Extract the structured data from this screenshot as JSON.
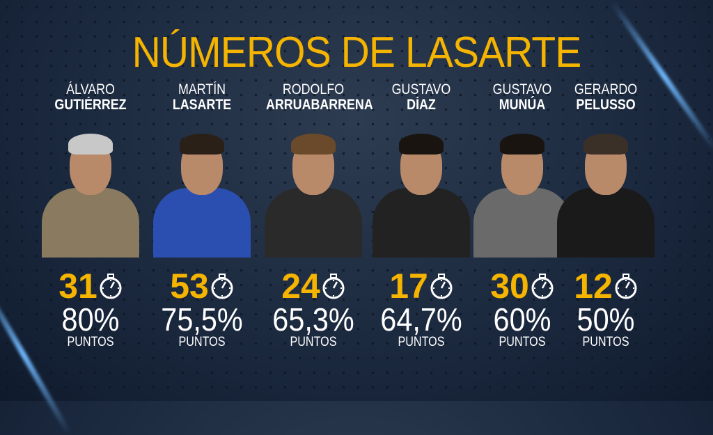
{
  "title": "NÚMEROS DE LASARTE",
  "coaches": [
    {
      "first": "ÁLVARO",
      "last": "GUTIÉRREZ",
      "games": "31",
      "percent": "80%",
      "unit": "PUNTOS",
      "hair": "#c8c8c8",
      "shirt": "#8a7a60"
    },
    {
      "first": "MARTÍN",
      "last": "LASARTE",
      "games": "53",
      "percent": "75,5%",
      "unit": "PUNTOS",
      "hair": "#2a2018",
      "shirt": "#2b4fb0"
    },
    {
      "first": "RODOLFO",
      "last": "ARRUABARRENA",
      "games": "24",
      "percent": "65,3%",
      "unit": "PUNTOS",
      "hair": "#6a4a2a",
      "shirt": "#2a2a2a"
    },
    {
      "first": "GUSTAVO",
      "last": "DÍAZ",
      "games": "17",
      "percent": "64,7%",
      "unit": "PUNTOS",
      "hair": "#1a1410",
      "shirt": "#222"
    },
    {
      "first": "GUSTAVO",
      "last": "MUNÚA",
      "games": "30",
      "percent": "60%",
      "unit": "PUNTOS",
      "hair": "#1a1410",
      "shirt": "#6a6a6a"
    },
    {
      "first": "GERARDO",
      "last": "PELUSSO",
      "games": "12",
      "percent": "50%",
      "unit": "PUNTOS",
      "hair": "#3a3028",
      "shirt": "#1a1a1a"
    }
  ],
  "colors": {
    "accent": "#f5b400",
    "text": "#ffffff",
    "background": "#1c2a40"
  },
  "icon": "stopwatch-icon"
}
